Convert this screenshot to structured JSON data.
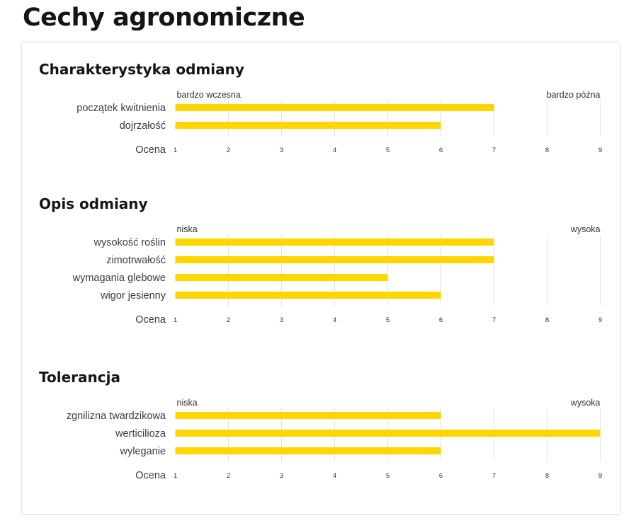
{
  "page": {
    "title": "Cechy agronomiczne"
  },
  "colors": {
    "bar": "#FFD600",
    "grid": "#e3e3e3"
  },
  "chart_data": [
    {
      "type": "bar",
      "orientation": "horizontal",
      "title": "Charakterystyka odmiany",
      "scale_min_label": "bardzo wczesna",
      "scale_max_label": "bardzo późna",
      "axis_label": "Ocena",
      "xlim": [
        1,
        9
      ],
      "ticks": [
        "1",
        "2",
        "3",
        "4",
        "5",
        "6",
        "7",
        "8",
        "9"
      ],
      "grid": true,
      "categories": [
        "początek kwitnienia",
        "dojrzałość"
      ],
      "values": [
        7,
        6
      ]
    },
    {
      "type": "bar",
      "orientation": "horizontal",
      "title": "Opis odmiany",
      "scale_min_label": "niska",
      "scale_max_label": "wysoka",
      "axis_label": "Ocena",
      "xlim": [
        1,
        9
      ],
      "ticks": [
        "1",
        "2",
        "3",
        "4",
        "5",
        "6",
        "7",
        "8",
        "9"
      ],
      "grid": true,
      "categories": [
        "wysokość roślin",
        "zimotrwałość",
        "wymagania glebowe",
        "wigor jesienny"
      ],
      "values": [
        7,
        7,
        5,
        6
      ]
    },
    {
      "type": "bar",
      "orientation": "horizontal",
      "title": "Tolerancja",
      "scale_min_label": "niska",
      "scale_max_label": "wysoka",
      "axis_label": "Ocena",
      "xlim": [
        1,
        9
      ],
      "ticks": [
        "1",
        "2",
        "3",
        "4",
        "5",
        "6",
        "7",
        "8",
        "9"
      ],
      "grid": true,
      "categories": [
        "zgnilizna twardzikowa",
        "werticilioza",
        "wyleganie"
      ],
      "values": [
        6,
        9,
        6
      ]
    }
  ]
}
